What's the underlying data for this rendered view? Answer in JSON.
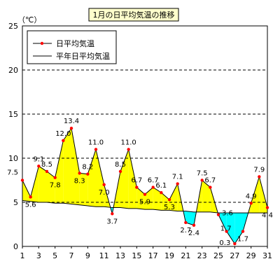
{
  "chart_data": {
    "type": "line",
    "title": "1月の日平均気温の推移",
    "unit_label": "（℃）",
    "x": [
      1,
      2,
      3,
      4,
      5,
      6,
      7,
      8,
      9,
      10,
      11,
      12,
      13,
      14,
      15,
      16,
      17,
      18,
      19,
      20,
      21,
      22,
      23,
      24,
      25,
      26,
      27,
      28,
      29,
      30,
      31
    ],
    "x_ticks": [
      1,
      3,
      5,
      7,
      9,
      11,
      13,
      15,
      17,
      19,
      21,
      23,
      25,
      27,
      29,
      31
    ],
    "ylim": [
      0,
      25
    ],
    "y_ticks": [
      0,
      5,
      10,
      15,
      20,
      25
    ],
    "grid": "horizontal dashed",
    "legend_position": "top-left",
    "colors": {
      "daily_line": "#000000",
      "daily_marker": "#ff0000",
      "normal_line": "#000000",
      "above_fill": "#ffff00",
      "below_fill": "#00ffff",
      "title_bg": "#ffffcc"
    },
    "series": [
      {
        "name": "日平均気温",
        "values": [
          7.5,
          5.6,
          9.1,
          8.5,
          7.8,
          12.0,
          13.4,
          8.3,
          8.2,
          11.0,
          7.0,
          3.7,
          8.5,
          11.0,
          6.7,
          5.9,
          6.7,
          6.1,
          5.3,
          7.1,
          2.7,
          2.4,
          7.5,
          6.7,
          3.6,
          1.7,
          0.3,
          1.7,
          4.9,
          7.9,
          4.4
        ]
      },
      {
        "name": "平年日平均気温",
        "values": [
          5.2,
          5.1,
          5.0,
          5.0,
          4.9,
          4.9,
          4.8,
          4.7,
          4.6,
          4.5,
          4.5,
          4.4,
          4.4,
          4.3,
          4.3,
          4.2,
          4.2,
          4.1,
          4.1,
          4.0,
          4.0,
          3.9,
          3.9,
          3.9,
          3.8,
          3.8,
          3.8,
          3.8,
          3.8,
          3.8,
          3.8
        ]
      }
    ],
    "data_labels": [
      "7.5",
      "5.6",
      "9.1",
      "8.5",
      "7.8",
      "12.0",
      "13.4",
      "8.3",
      "8.2",
      "11.0",
      "7.0",
      "3.7",
      "8.5",
      "11.0",
      "6.7",
      "5.9",
      "6.7",
      "6.1",
      "5.3",
      "7.1",
      "2.7",
      "2.4",
      "7.5",
      "6.7",
      "3.6",
      "1.7",
      "0.3",
      "1.7",
      "4.9",
      "7.9",
      "4.4"
    ]
  }
}
